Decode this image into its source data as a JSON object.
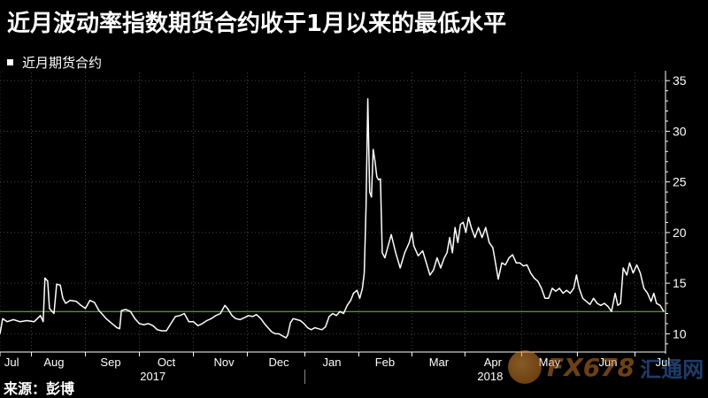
{
  "title": "近月波动率指数期货合约收于1月以来的最低水平",
  "legend": {
    "label": "近月期货合约"
  },
  "source": "来源：彭博",
  "watermark": {
    "text": "FX678",
    "text_cn": "汇通网"
  },
  "colors": {
    "line": "#ffffff",
    "reference": "#7bc043",
    "axis": "#ffffff",
    "grid": "#444444"
  },
  "chart_data": {
    "type": "line",
    "title": "近月波动率指数期货合约收于1月以来的最低水平",
    "series": [
      {
        "name": "近月期货合约",
        "points": [
          [
            0,
            10.0
          ],
          [
            3,
            11.5
          ],
          [
            8,
            11.2
          ],
          [
            15,
            11.4
          ],
          [
            22,
            11.2
          ],
          [
            30,
            11.3
          ],
          [
            38,
            11.2
          ],
          [
            45,
            11.8
          ],
          [
            48,
            11.2
          ],
          [
            50,
            15.5
          ],
          [
            53,
            15.2
          ],
          [
            55,
            12.5
          ],
          [
            60,
            12.0
          ],
          [
            63,
            14.9
          ],
          [
            67,
            14.8
          ],
          [
            70,
            13.5
          ],
          [
            73,
            13.0
          ],
          [
            78,
            13.3
          ],
          [
            85,
            13.2
          ],
          [
            90,
            12.8
          ],
          [
            95,
            12.5
          ],
          [
            100,
            13.3
          ],
          [
            105,
            13.1
          ],
          [
            110,
            12.3
          ],
          [
            115,
            11.8
          ],
          [
            118,
            11.5
          ],
          [
            122,
            11.2
          ],
          [
            126,
            10.9
          ],
          [
            130,
            10.6
          ],
          [
            133,
            10.5
          ],
          [
            135,
            12.3
          ],
          [
            140,
            12.4
          ],
          [
            145,
            12.2
          ],
          [
            150,
            11.5
          ],
          [
            155,
            11.0
          ],
          [
            160,
            10.9
          ],
          [
            165,
            11.0
          ],
          [
            170,
            10.8
          ],
          [
            175,
            10.4
          ],
          [
            180,
            10.3
          ],
          [
            185,
            10.3
          ],
          [
            190,
            11.0
          ],
          [
            195,
            11.7
          ],
          [
            200,
            11.8
          ],
          [
            205,
            12.0
          ],
          [
            210,
            11.2
          ],
          [
            215,
            11.2
          ],
          [
            220,
            10.8
          ],
          [
            225,
            11.0
          ],
          [
            230,
            11.3
          ],
          [
            235,
            11.5
          ],
          [
            240,
            11.8
          ],
          [
            245,
            12.0
          ],
          [
            250,
            12.8
          ],
          [
            253,
            12.5
          ],
          [
            258,
            11.8
          ],
          [
            262,
            11.5
          ],
          [
            267,
            11.4
          ],
          [
            272,
            11.6
          ],
          [
            276,
            11.8
          ],
          [
            281,
            11.7
          ],
          [
            285,
            11.9
          ],
          [
            290,
            11.5
          ],
          [
            294,
            11.0
          ],
          [
            298,
            10.6
          ],
          [
            302,
            10.2
          ],
          [
            306,
            10.0
          ],
          [
            310,
            10.0
          ],
          [
            314,
            9.8
          ],
          [
            318,
            9.6
          ],
          [
            320,
            9.9
          ],
          [
            323,
            11.1
          ],
          [
            326,
            11.5
          ],
          [
            330,
            11.4
          ],
          [
            334,
            11.3
          ],
          [
            338,
            11.0
          ],
          [
            342,
            10.6
          ],
          [
            346,
            10.4
          ],
          [
            350,
            10.6
          ],
          [
            354,
            10.5
          ],
          [
            358,
            10.4
          ],
          [
            362,
            10.7
          ],
          [
            366,
            11.7
          ],
          [
            370,
            12.0
          ],
          [
            374,
            11.8
          ],
          [
            378,
            12.2
          ],
          [
            382,
            12.0
          ],
          [
            386,
            12.8
          ],
          [
            390,
            13.3
          ],
          [
            393,
            14.0
          ],
          [
            397,
            14.3
          ],
          [
            400,
            13.5
          ],
          [
            403,
            14.5
          ],
          [
            405,
            16.0
          ],
          [
            407,
            22.5
          ],
          [
            409,
            33.2
          ],
          [
            411,
            24.0
          ],
          [
            413,
            23.5
          ],
          [
            415,
            28.2
          ],
          [
            417,
            27.0
          ],
          [
            419,
            25.5
          ],
          [
            421,
            25.2
          ],
          [
            423,
            25.3
          ],
          [
            425,
            18.0
          ],
          [
            428,
            17.5
          ],
          [
            431,
            18.5
          ],
          [
            435,
            19.8
          ],
          [
            440,
            18.0
          ],
          [
            445,
            16.5
          ],
          [
            450,
            18.0
          ],
          [
            455,
            19.0
          ],
          [
            458,
            20.0
          ],
          [
            460,
            18.7
          ],
          [
            465,
            17.7
          ],
          [
            470,
            18.2
          ],
          [
            474,
            17.0
          ],
          [
            478,
            15.8
          ],
          [
            482,
            16.3
          ],
          [
            486,
            17.5
          ],
          [
            490,
            16.5
          ],
          [
            494,
            17.5
          ],
          [
            497,
            18.0
          ],
          [
            500,
            19.5
          ],
          [
            503,
            18.0
          ],
          [
            506,
            20.5
          ],
          [
            509,
            19.0
          ],
          [
            512,
            20.8
          ],
          [
            515,
            21.0
          ],
          [
            518,
            20.0
          ],
          [
            521,
            21.5
          ],
          [
            524,
            20.5
          ],
          [
            528,
            19.5
          ],
          [
            532,
            20.5
          ],
          [
            536,
            19.5
          ],
          [
            540,
            20.5
          ],
          [
            544,
            19.0
          ],
          [
            548,
            18.5
          ],
          [
            551,
            17.0
          ],
          [
            554,
            15.4
          ],
          [
            558,
            17.0
          ],
          [
            562,
            16.8
          ],
          [
            566,
            17.5
          ],
          [
            570,
            17.8
          ],
          [
            574,
            17.0
          ],
          [
            578,
            17.0
          ],
          [
            582,
            16.7
          ],
          [
            586,
            16.8
          ],
          [
            590,
            16.0
          ],
          [
            594,
            15.5
          ],
          [
            598,
            15.2
          ],
          [
            602,
            14.5
          ],
          [
            606,
            13.5
          ],
          [
            610,
            13.5
          ],
          [
            614,
            14.5
          ],
          [
            618,
            14.2
          ],
          [
            622,
            14.5
          ],
          [
            626,
            14.0
          ],
          [
            630,
            14.3
          ],
          [
            634,
            14.0
          ],
          [
            638,
            14.5
          ],
          [
            641,
            15.8
          ],
          [
            644,
            14.5
          ],
          [
            648,
            13.5
          ],
          [
            652,
            13.2
          ],
          [
            656,
            12.9
          ],
          [
            660,
            13.5
          ],
          [
            664,
            13.0
          ],
          [
            668,
            12.8
          ],
          [
            672,
            13.0
          ],
          [
            676,
            12.7
          ],
          [
            680,
            12.2
          ],
          [
            684,
            14.0
          ],
          [
            687,
            12.8
          ],
          [
            690,
            13.0
          ],
          [
            693,
            16.5
          ],
          [
            697,
            15.8
          ],
          [
            700,
            17.0
          ],
          [
            704,
            16.0
          ],
          [
            708,
            16.8
          ],
          [
            712,
            16.0
          ],
          [
            716,
            14.5
          ],
          [
            720,
            14.0
          ],
          [
            724,
            13.2
          ],
          [
            727,
            14.0
          ],
          [
            730,
            13.0
          ],
          [
            734,
            12.8
          ],
          [
            738,
            12.2
          ]
        ]
      }
    ],
    "reference_line": 12.2,
    "y_ticks": [
      10,
      15,
      20,
      25,
      30,
      35
    ],
    "ylim": [
      8.2,
      35.8
    ],
    "x_range": [
      0,
      740
    ],
    "months": [
      {
        "label": "Jul",
        "at": 13
      },
      {
        "label": "Aug",
        "at": 60
      },
      {
        "label": "Sep",
        "at": 123
      },
      {
        "label": "Oct",
        "at": 185
      },
      {
        "label": "Nov",
        "at": 249
      },
      {
        "label": "Dec",
        "at": 310
      },
      {
        "label": "Jan",
        "at": 369
      },
      {
        "label": "Feb",
        "at": 428
      },
      {
        "label": "Mar",
        "at": 488
      },
      {
        "label": "Apr",
        "at": 548
      },
      {
        "label": "May",
        "at": 611
      },
      {
        "label": "Jun",
        "at": 676
      },
      {
        "label": "Jul",
        "at": 737
      }
    ],
    "years": [
      {
        "label": "2017",
        "at": 170
      },
      {
        "label": "2018",
        "at": 545
      }
    ],
    "year_divider_at": 339,
    "x_ticks": [
      0,
      35,
      95,
      155,
      215,
      275,
      339,
      399,
      458,
      517,
      580,
      642,
      706
    ]
  }
}
